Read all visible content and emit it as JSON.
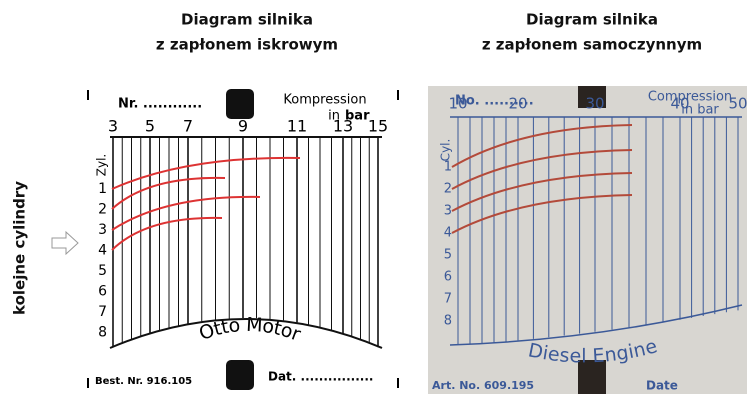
{
  "side_label": "kolejne cylindry",
  "left": {
    "title": [
      "Diagram silnika",
      "z zapłonem iskrowym"
    ],
    "number_field": "Nr. ............",
    "scale_title": "Kompression",
    "scale_unit_prefix": "in",
    "scale_unit": "bar",
    "scale_labels": [
      "3",
      "5",
      "7",
      "9",
      "11",
      "13",
      "15"
    ],
    "cylinder_header": "Zyl.",
    "cylinders": [
      "1",
      "2",
      "3",
      "4",
      "5",
      "6",
      "7",
      "8"
    ],
    "engine": "Otto Motor",
    "order_number": "Best. Nr. 916.105",
    "date_field": "Dat. ................"
  },
  "right": {
    "title": [
      "Diagram silnika",
      "z zapłonem samoczynnym"
    ],
    "number_field": "No. ..........",
    "scale_title": "Compression",
    "scale_unit": "in bar",
    "scale_labels": [
      "10",
      "20",
      "30",
      "40",
      "50"
    ],
    "cylinder_header": "Cyl.",
    "cylinders": [
      "1",
      "2",
      "3",
      "4",
      "5",
      "6",
      "7",
      "8"
    ],
    "engine": "Diesel Engine",
    "order_number": "Art. No. 609.195",
    "date_field": "Date"
  }
}
